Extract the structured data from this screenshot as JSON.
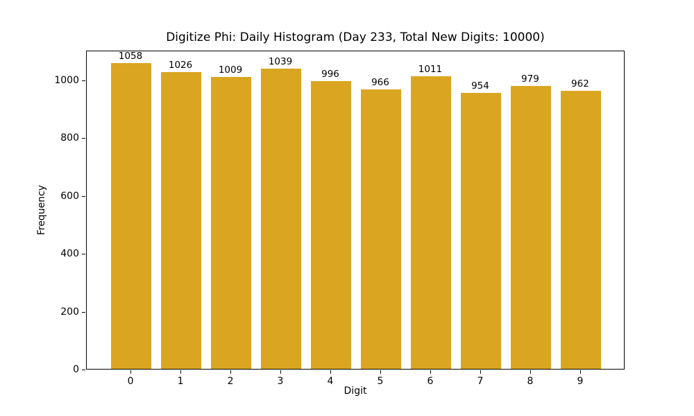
{
  "chart_data": {
    "type": "bar",
    "title": "Digitize Phi: Daily Histogram (Day 233, Total New Digits: 10000)",
    "xlabel": "Digit",
    "ylabel": "Frequency",
    "categories": [
      "0",
      "1",
      "2",
      "3",
      "4",
      "5",
      "6",
      "7",
      "8",
      "9"
    ],
    "values": [
      1058,
      1026,
      1009,
      1039,
      996,
      966,
      1011,
      954,
      979,
      962
    ],
    "bar_value_labels": [
      "1058",
      "1026",
      "1009",
      "1039",
      "996",
      "966",
      "1011",
      "954",
      "979",
      "962"
    ],
    "yticks": [
      0,
      200,
      400,
      600,
      800,
      1000
    ],
    "ytick_labels": [
      "0",
      "200",
      "400",
      "600",
      "800",
      "1000"
    ],
    "ylim": [
      0,
      1103
    ],
    "bar_width_fraction": 0.8,
    "bar_color": "#DAA520",
    "text_color": "#000000",
    "background_color": "#ffffff",
    "grid": false,
    "legend": null
  }
}
